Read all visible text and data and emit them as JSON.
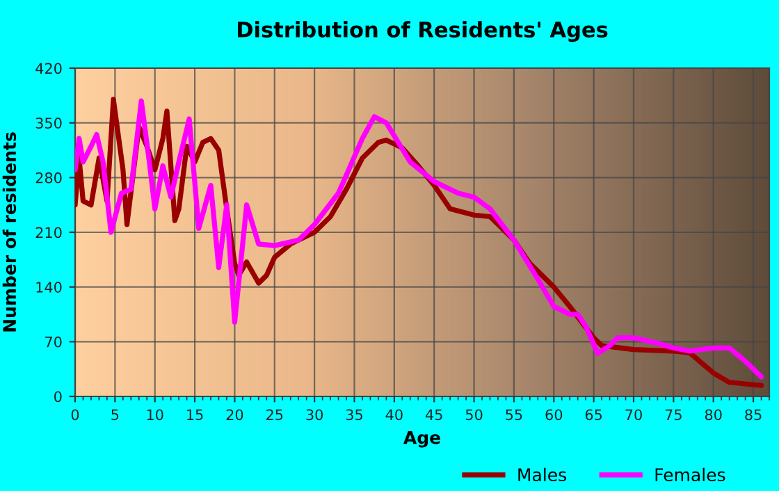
{
  "chart_data": {
    "type": "line",
    "title": "Distribution of Residents' Ages",
    "xlabel": "Age",
    "ylabel": "Number of residents",
    "xlim": [
      0,
      87
    ],
    "xticks": [
      0,
      5,
      10,
      15,
      20,
      25,
      30,
      35,
      40,
      45,
      50,
      55,
      60,
      65,
      70,
      75,
      80,
      85
    ],
    "ylim": [
      0,
      420
    ],
    "yticks": [
      0,
      70,
      140,
      210,
      280,
      350,
      420
    ],
    "grid": true,
    "legend": "bottom",
    "series": [
      {
        "name": "Males",
        "color": "#990000",
        "x": [
          0,
          0.5,
          1,
          2,
          3,
          4,
          4.8,
          6,
          6.5,
          8,
          9,
          10,
          11,
          11.5,
          12.5,
          13,
          14,
          15,
          16,
          17,
          18,
          19,
          20,
          20.5,
          21.5,
          23,
          24,
          25,
          27,
          30,
          32,
          34,
          36,
          38,
          39,
          41,
          43,
          45,
          47,
          50,
          52,
          55,
          57,
          60,
          62,
          65,
          66,
          70,
          75,
          77,
          80,
          82,
          86
        ],
        "values": [
          245,
          305,
          250,
          245,
          305,
          250,
          380,
          290,
          220,
          345,
          320,
          290,
          330,
          365,
          225,
          240,
          320,
          300,
          325,
          330,
          315,
          240,
          170,
          155,
          172,
          145,
          155,
          178,
          195,
          210,
          230,
          265,
          305,
          325,
          328,
          318,
          295,
          270,
          240,
          232,
          230,
          200,
          170,
          140,
          115,
          75,
          65,
          60,
          58,
          56,
          30,
          18,
          14
        ]
      },
      {
        "name": "Females",
        "color": "#ff00ff",
        "x": [
          0,
          0.5,
          1,
          2,
          2.7,
          3.5,
          4.5,
          5.8,
          7,
          8.3,
          9.3,
          10,
          11,
          12,
          13,
          14.3,
          15.5,
          17,
          18,
          19,
          20,
          21.5,
          23,
          25,
          28,
          30,
          33,
          36,
          37.5,
          39,
          42,
          45,
          48,
          50,
          52,
          55,
          58,
          60,
          62,
          63,
          64,
          65.5,
          67,
          68,
          70,
          73,
          75,
          77,
          80,
          82,
          84,
          86
        ],
        "values": [
          290,
          330,
          300,
          320,
          335,
          300,
          210,
          260,
          265,
          378,
          300,
          240,
          295,
          255,
          300,
          355,
          215,
          270,
          165,
          245,
          95,
          245,
          195,
          193,
          200,
          220,
          260,
          330,
          358,
          350,
          300,
          275,
          260,
          255,
          240,
          200,
          150,
          115,
          105,
          105,
          90,
          55,
          65,
          75,
          75,
          68,
          62,
          58,
          62,
          62,
          45,
          25
        ]
      }
    ]
  }
}
